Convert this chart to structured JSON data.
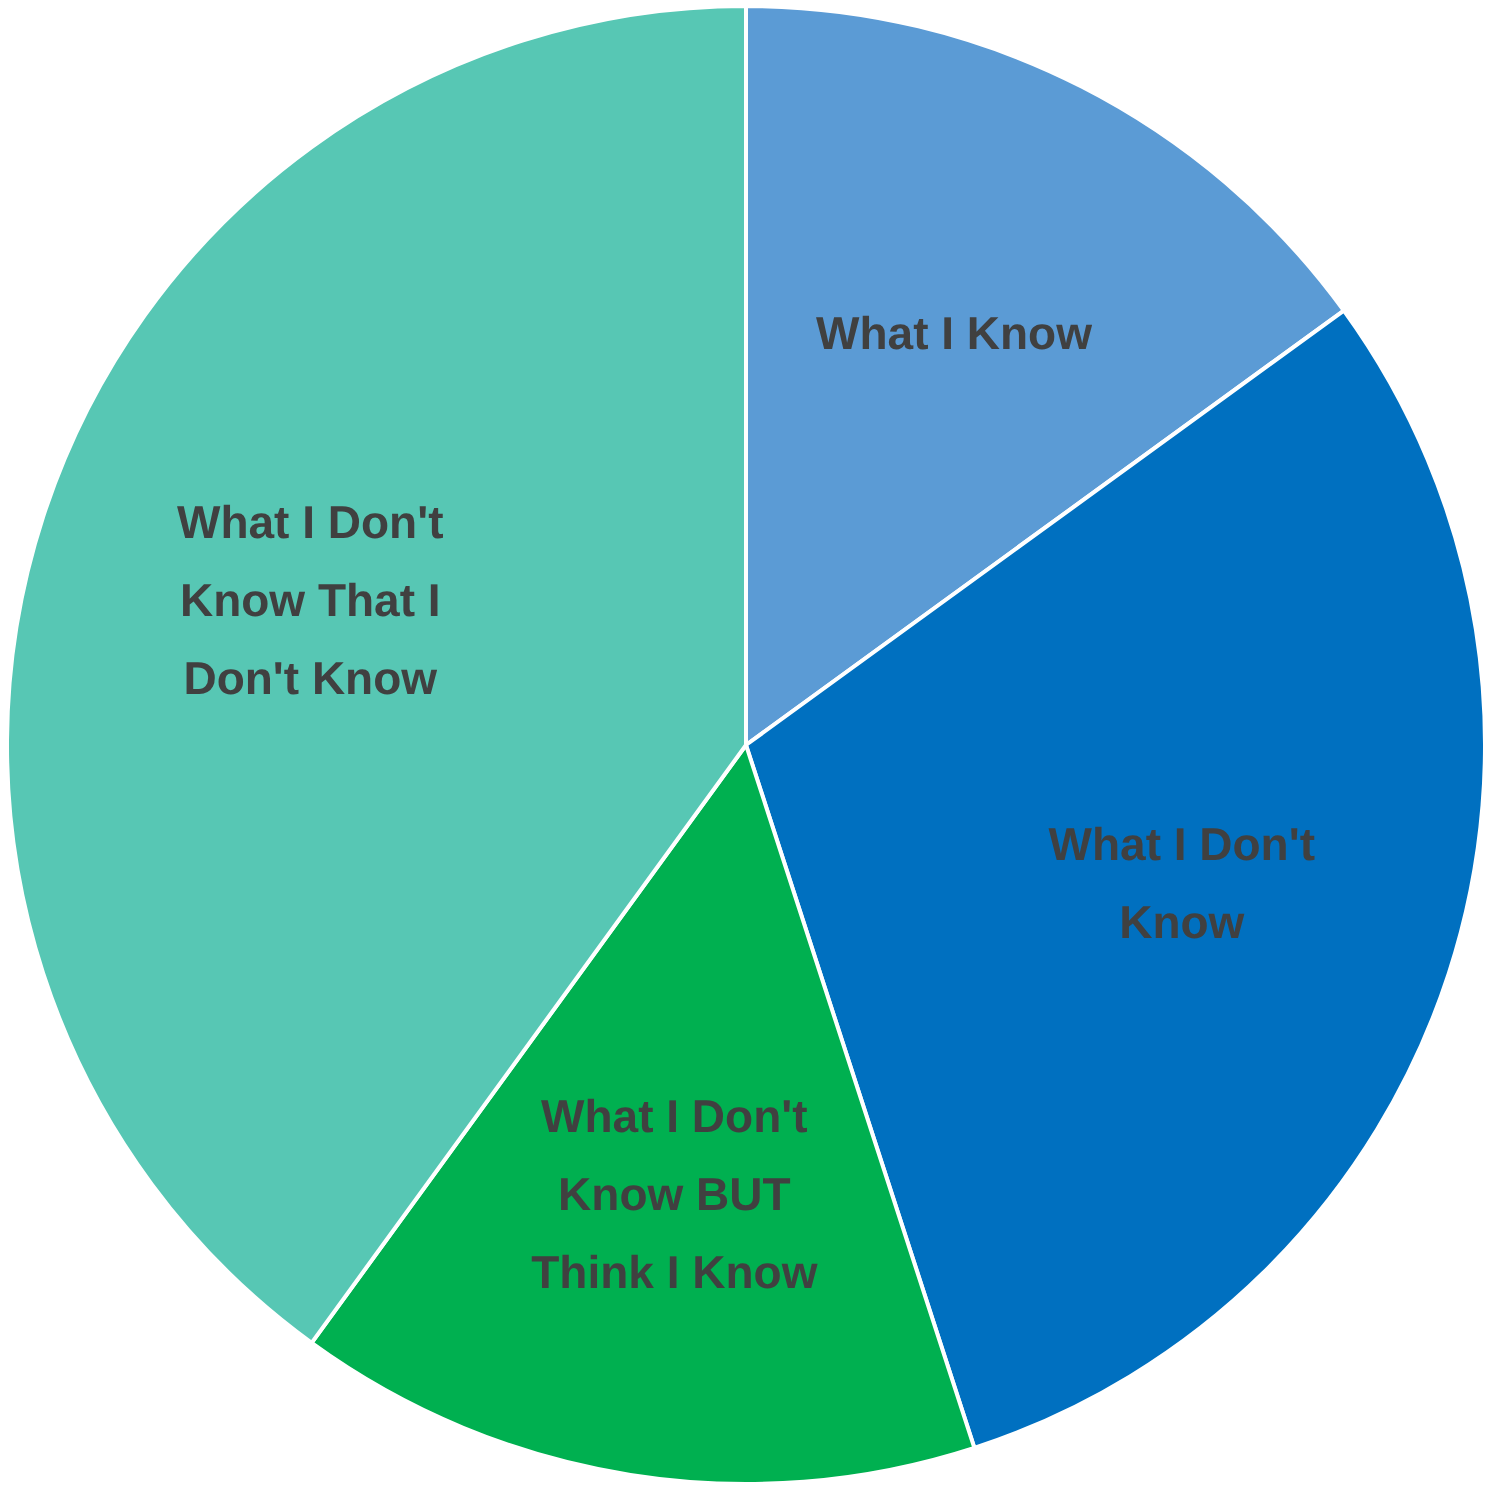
{
  "chart_data": {
    "type": "pie",
    "categories": [
      "What I Know",
      "What I Don't Know",
      "What I Don't Know BUT Think I Know",
      "What I Don't Know That I Don't Know"
    ],
    "values": [
      15,
      30,
      15,
      40
    ],
    "colors": [
      "#5b9bd5",
      "#0070c0",
      "#00b050",
      "#57c7b4"
    ]
  }
}
